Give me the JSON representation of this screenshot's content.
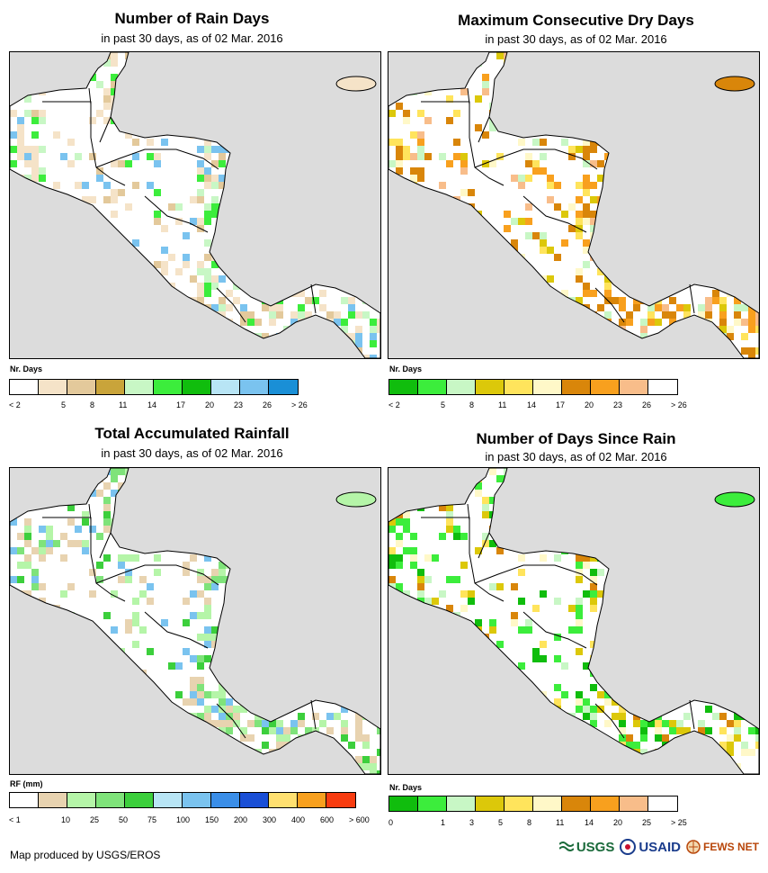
{
  "panels": [
    {
      "title": "Number of Rain Days",
      "subtitle": "in past 30 days, as of 02 Mar. 2016",
      "legend_title": "Nr. Days",
      "legend_colors": [
        "#ffffff",
        "#f5e3c8",
        "#e3c99b",
        "#c9a43a",
        "#c8f7c5",
        "#3ced3c",
        "#10bd0d",
        "#b8e5f5",
        "#7ac3ef",
        "#1a8fd6"
      ],
      "legend_labels": [
        "< 2",
        "5",
        "8",
        "11",
        "14",
        "17",
        "20",
        "23",
        "26",
        "> 26"
      ]
    },
    {
      "title": "Maximum Consecutive Dry Days",
      "subtitle": "in past 30 days, as of 02 Mar. 2016",
      "legend_title": "Nr. Days",
      "legend_colors": [
        "#10bd0d",
        "#3ced3c",
        "#c8f7c5",
        "#dcc80a",
        "#ffe45c",
        "#fff8c8",
        "#d9860a",
        "#f8a01e",
        "#f8bd8a",
        "#ffffff"
      ],
      "legend_labels": [
        "< 2",
        "5",
        "8",
        "11",
        "14",
        "17",
        "20",
        "23",
        "26",
        "> 26"
      ]
    },
    {
      "title": "Total Accumulated Rainfall",
      "subtitle": "in past 30 days, as of 02 Mar. 2016",
      "legend_title": "RF (mm)",
      "legend_colors": [
        "#ffffff",
        "#e8d3b0",
        "#b5f5a8",
        "#7fe37a",
        "#3ccf3c",
        "#b8e5f5",
        "#7ac3ef",
        "#3a8ee8",
        "#1a4fd6",
        "#ffe070",
        "#f8a01e",
        "#f83c10"
      ],
      "legend_labels": [
        "< 1",
        "10",
        "25",
        "50",
        "75",
        "100",
        "150",
        "200",
        "300",
        "400",
        "600",
        "> 600"
      ]
    },
    {
      "title": "Number of Days Since Rain",
      "subtitle": "in past 30 days, as of 02 Mar. 2016",
      "legend_title": "Nr. Days",
      "legend_colors": [
        "#10bd0d",
        "#3ced3c",
        "#c8f7c5",
        "#dcc80a",
        "#ffe45c",
        "#fff8c8",
        "#d9860a",
        "#f8a01e",
        "#f8bd8a",
        "#ffffff"
      ],
      "legend_labels": [
        "0",
        "1",
        "3",
        "5",
        "8",
        "11",
        "14",
        "20",
        "25",
        "> 25"
      ]
    }
  ],
  "footer": "Map produced by USGS/EROS",
  "logos": {
    "usgs": "USGS",
    "usaid": "USAID",
    "fewsnet": "FEWS NET"
  }
}
